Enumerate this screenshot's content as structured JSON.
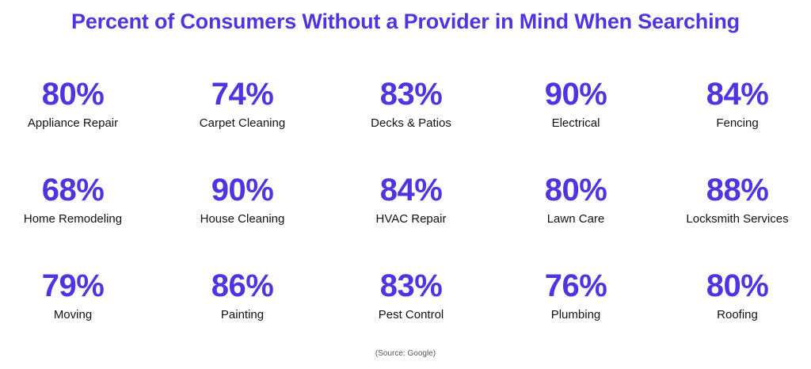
{
  "title": "Percent of Consumers Without a Provider in Mind When Searching",
  "source": "(Source: Google)",
  "colors": {
    "accent": "#4f35e0",
    "label": "#111111",
    "background": "#ffffff"
  },
  "chart_data": {
    "type": "table",
    "title": "Percent of Consumers Without a Provider in Mind When Searching",
    "value_unit": "%",
    "categories": [
      "Appliance Repair",
      "Carpet Cleaning",
      "Decks & Patios",
      "Electrical",
      "Fencing",
      "Home Remodeling",
      "House Cleaning",
      "HVAC Repair",
      "Lawn Care",
      "Locksmith Services",
      "Moving",
      "Painting",
      "Pest Control",
      "Plumbing",
      "Roofing"
    ],
    "values": [
      80,
      74,
      83,
      90,
      84,
      68,
      90,
      84,
      80,
      88,
      79,
      86,
      83,
      76,
      80
    ],
    "display_values": [
      "80%",
      "74%",
      "83%",
      "90%",
      "84%",
      "68%",
      "90%",
      "84%",
      "80%",
      "88%",
      "79%",
      "86%",
      "83%",
      "76%",
      "80%"
    ],
    "source": "(Source: Google)"
  }
}
